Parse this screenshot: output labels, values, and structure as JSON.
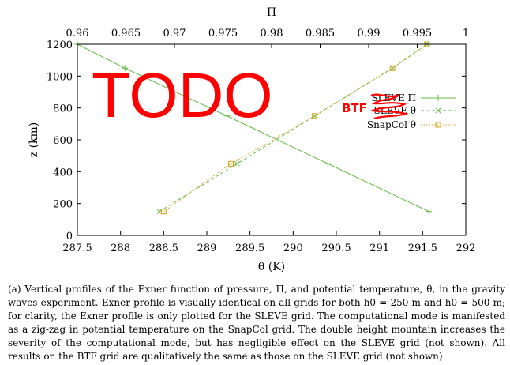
{
  "chart_data": {
    "type": "line",
    "xlabel": "θ (K)",
    "x2label": "Π",
    "ylabel": "z (km)",
    "xlim": [
      287.5,
      292
    ],
    "x2lim": [
      0.96,
      1.0
    ],
    "ylim": [
      0,
      1200
    ],
    "xticks": [
      "287.5",
      "288",
      "288.5",
      "289",
      "289.5",
      "290",
      "290.5",
      "291",
      "291.5",
      "292"
    ],
    "x2ticks": [
      "0.96",
      "0.965",
      "0.97",
      "0.975",
      "0.98",
      "0.985",
      "0.99",
      "0.995",
      "1"
    ],
    "yticks": [
      "0",
      "200",
      "400",
      "600",
      "800",
      "1000",
      "1200"
    ],
    "grid": false,
    "legend_position": "right",
    "series": [
      {
        "name": "SLEVE Π",
        "axis": "top",
        "color": "#66bb44",
        "style": "solid",
        "marker": "plus",
        "points": [
          [
            0.96,
            1200
          ],
          [
            0.9649,
            1050
          ],
          [
            0.9754,
            750
          ],
          [
            0.9858,
            450
          ],
          [
            0.9962,
            150
          ]
        ]
      },
      {
        "name": "SLEVE θ",
        "axis": "bottom",
        "color": "#66bb44",
        "style": "dashed",
        "marker": "x",
        "points": [
          [
            288.45,
            150
          ],
          [
            289.35,
            450
          ],
          [
            290.25,
            750
          ],
          [
            291.15,
            1050
          ],
          [
            291.55,
            1200
          ]
        ]
      },
      {
        "name": "SnapCol θ",
        "axis": "bottom",
        "color": "#d4a017",
        "style": "dotted",
        "marker": "square",
        "points": [
          [
            288.5,
            150
          ],
          [
            289.28,
            450
          ],
          [
            290.25,
            750
          ],
          [
            291.15,
            1050
          ],
          [
            291.55,
            1200
          ]
        ]
      }
    ]
  },
  "overlay": {
    "todo": "TODO",
    "btf": "BTF"
  },
  "caption": "(a) Vertical profiles of the Exner function of pressure, Π, and potential temperature, θ, in the gravity waves experiment. Exner profile is visually identical on all grids for both h0 = 250 m and h0 = 500 m; for clarity, the Exner profile is only plotted for the SLEVE grid. The computational mode is manifested as a zig-zag in potential temperature on the SnapCol grid. The double height mountain increases the severity of the computational mode, but has negligible effect on the SLEVE grid (not shown). All results on the BTF grid are qualitatively the same as those on the SLEVE grid (not shown)."
}
